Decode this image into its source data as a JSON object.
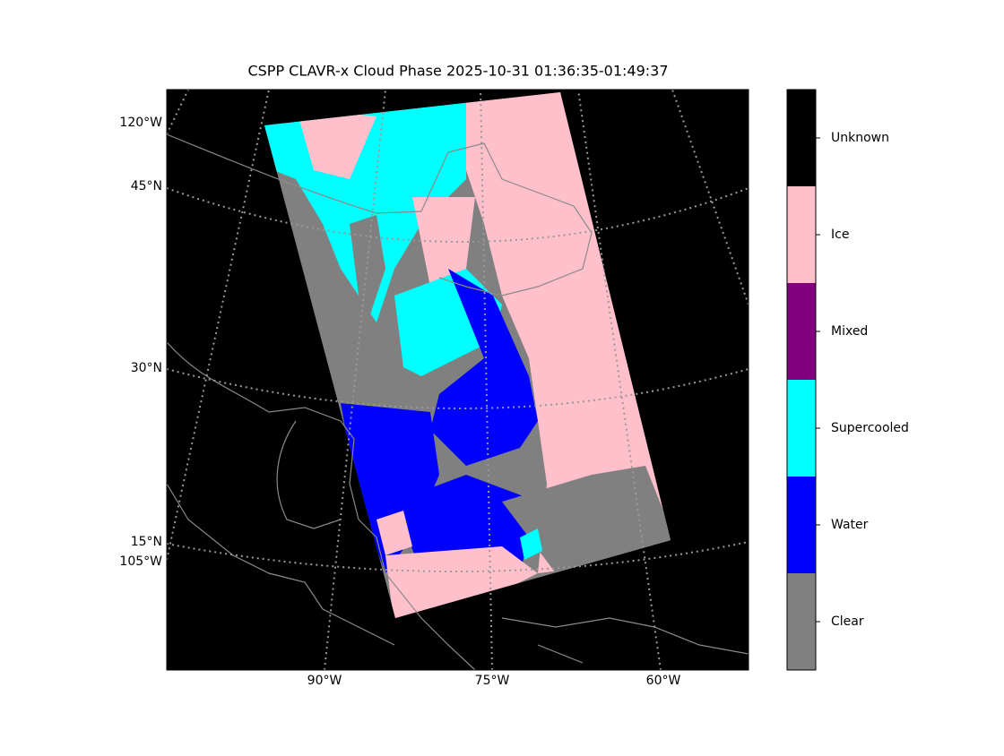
{
  "title": "CSPP CLAVR-x Cloud Phase 2025-10-31 01:36:35-01:49:37",
  "map": {
    "lat_labels": [
      "45°N",
      "30°N",
      "15°N"
    ],
    "lon_labels_left": [
      "120°W",
      "105°W"
    ],
    "lon_labels_bottom": [
      "90°W",
      "75°W",
      "60°W"
    ]
  },
  "colorbar": {
    "classes": [
      {
        "label": "Clear",
        "color": "#808080"
      },
      {
        "label": "Water",
        "color": "#0000ff"
      },
      {
        "label": "Supercooled",
        "color": "#00ffff"
      },
      {
        "label": "Mixed",
        "color": "#800080"
      },
      {
        "label": "Ice",
        "color": "#ffc0cb"
      },
      {
        "label": "Unknown",
        "color": "#000000"
      }
    ]
  }
}
